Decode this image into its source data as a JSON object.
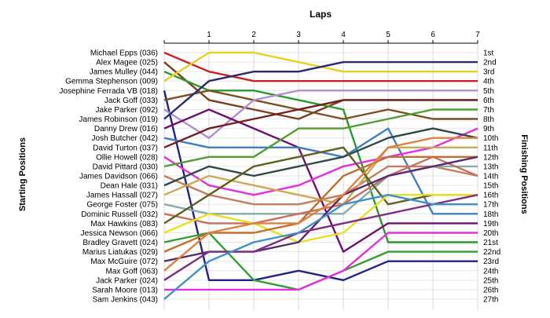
{
  "chart_data": {
    "type": "line",
    "title": "Laps",
    "ylabel_left": "Starting Positions",
    "ylabel_right": "Finishing Positions",
    "x": [
      0,
      1,
      2,
      3,
      4,
      5,
      6,
      7
    ],
    "xticks": [
      "1",
      "2",
      "3",
      "4",
      "5",
      "6",
      "7"
    ],
    "ylim": [
      1,
      27
    ],
    "grid": true,
    "finishing_labels": [
      "1st",
      "2nd",
      "3rd",
      "4th",
      "5th",
      "6th",
      "7th",
      "8th",
      "9th",
      "10th",
      "11th",
      "12th",
      "13th",
      "14th",
      "15th",
      "16th",
      "17th",
      "18th",
      "19th",
      "20th",
      "21st",
      "22nd",
      "23rd",
      "24th",
      "25th",
      "26th",
      "27th"
    ],
    "series": [
      {
        "name": "Michael Epps (036)",
        "color": "#cc2222",
        "values": [
          1,
          3,
          4,
          4,
          4,
          4,
          4,
          4
        ]
      },
      {
        "name": "Alex Magee (025)",
        "color": "#7a3f1e",
        "values": [
          2,
          6,
          7,
          8,
          6,
          6,
          6,
          6
        ]
      },
      {
        "name": "James Mulley (044)",
        "color": "#2a9a2a",
        "values": [
          3,
          5,
          5,
          6,
          7,
          21,
          21,
          21
        ]
      },
      {
        "name": "Gemma Stephenson (009)",
        "color": "#e8d020",
        "values": [
          4,
          1,
          1,
          2,
          3,
          3,
          3,
          3
        ]
      },
      {
        "name": "Josephine Ferrada VB (018)",
        "color": "#222288",
        "values": [
          5,
          25,
          25,
          24,
          25,
          23,
          23,
          23
        ]
      },
      {
        "name": "Jack Goff (033)",
        "color": "#7a5020",
        "values": [
          6,
          5,
          6,
          7,
          8,
          7,
          8,
          8
        ]
      },
      {
        "name": "Jake Parker (092)",
        "color": "#b090d0",
        "values": [
          7,
          10,
          6,
          5,
          5,
          5,
          5,
          5
        ]
      },
      {
        "name": "James Robinson (019)",
        "color": "#2a2a70",
        "values": [
          8,
          4,
          3,
          3,
          2,
          2,
          2,
          2
        ]
      },
      {
        "name": "Danny Drew (016)",
        "color": "#701070",
        "values": [
          9,
          7,
          9,
          11,
          22,
          19,
          19,
          19
        ]
      },
      {
        "name": "Josh Butcher (042)",
        "color": "#4080c0",
        "values": [
          10,
          11,
          11,
          11,
          12,
          9,
          18,
          18
        ]
      },
      {
        "name": "David Turton (037)",
        "color": "#702020",
        "values": [
          11,
          9,
          8,
          7,
          6,
          6,
          6,
          6
        ]
      },
      {
        "name": "Ollie Howell (028)",
        "color": "#e030e0",
        "values": [
          12,
          15,
          16,
          15,
          13,
          12,
          11,
          9
        ]
      },
      {
        "name": "David Pittard (030)",
        "color": "#50a030",
        "values": [
          13,
          12,
          12,
          9,
          9,
          8,
          7,
          7
        ]
      },
      {
        "name": "James Davidson (066)",
        "color": "#c08060",
        "values": [
          14,
          16,
          17,
          17,
          16,
          13,
          13,
          14
        ]
      },
      {
        "name": "Dean Hale (031)",
        "color": "#304848",
        "values": [
          15,
          13,
          14,
          13,
          12,
          10,
          9,
          10
        ]
      },
      {
        "name": "James Hassall (027)",
        "color": "#ccaa55",
        "values": [
          16,
          14,
          15,
          16,
          17,
          11,
          11,
          11
        ]
      },
      {
        "name": "George Foster (075)",
        "color": "#88aaaa",
        "values": [
          17,
          18,
          18,
          18,
          18,
          14,
          13,
          13
        ]
      },
      {
        "name": "Dominic Russell (032)",
        "color": "#c87060",
        "values": [
          18,
          19,
          19,
          18,
          17,
          14,
          12,
          14
        ]
      },
      {
        "name": "Max Hawkins (083)",
        "color": "#606020",
        "values": [
          19,
          16,
          13,
          12,
          11,
          17,
          16,
          16
        ]
      },
      {
        "name": "Jessica Newson (066)",
        "color": "#e8e020",
        "values": [
          20,
          18,
          19,
          21,
          20,
          16,
          16,
          16
        ]
      },
      {
        "name": "Bradley Gravett (024)",
        "color": "#30a030",
        "values": [
          21,
          20,
          25,
          26,
          24,
          22,
          22,
          22
        ]
      },
      {
        "name": "Marius Liatukas (029)",
        "color": "#c07030",
        "values": [
          22,
          20,
          20,
          19,
          14,
          12,
          12,
          12
        ]
      },
      {
        "name": "Max McGuire (072)",
        "color": "#5a2a70",
        "values": [
          23,
          22,
          22,
          21,
          16,
          14,
          13,
          12
        ]
      },
      {
        "name": "Max Goff (063)",
        "color": "#e08040",
        "values": [
          24,
          20,
          19,
          19,
          16,
          11,
          10,
          10
        ]
      },
      {
        "name": "Jack Parker (024)",
        "color": "#803080",
        "values": [
          25,
          22,
          22,
          20,
          19,
          18,
          17,
          16
        ]
      },
      {
        "name": "Sarah Moore (013)",
        "color": "#e030e0",
        "values": [
          26,
          26,
          26,
          26,
          24,
          20,
          20,
          20
        ]
      },
      {
        "name": "Sam Jenkins (043)",
        "color": "#4090c8",
        "values": [
          27,
          23,
          21,
          20,
          17,
          16,
          17,
          17
        ]
      }
    ]
  }
}
